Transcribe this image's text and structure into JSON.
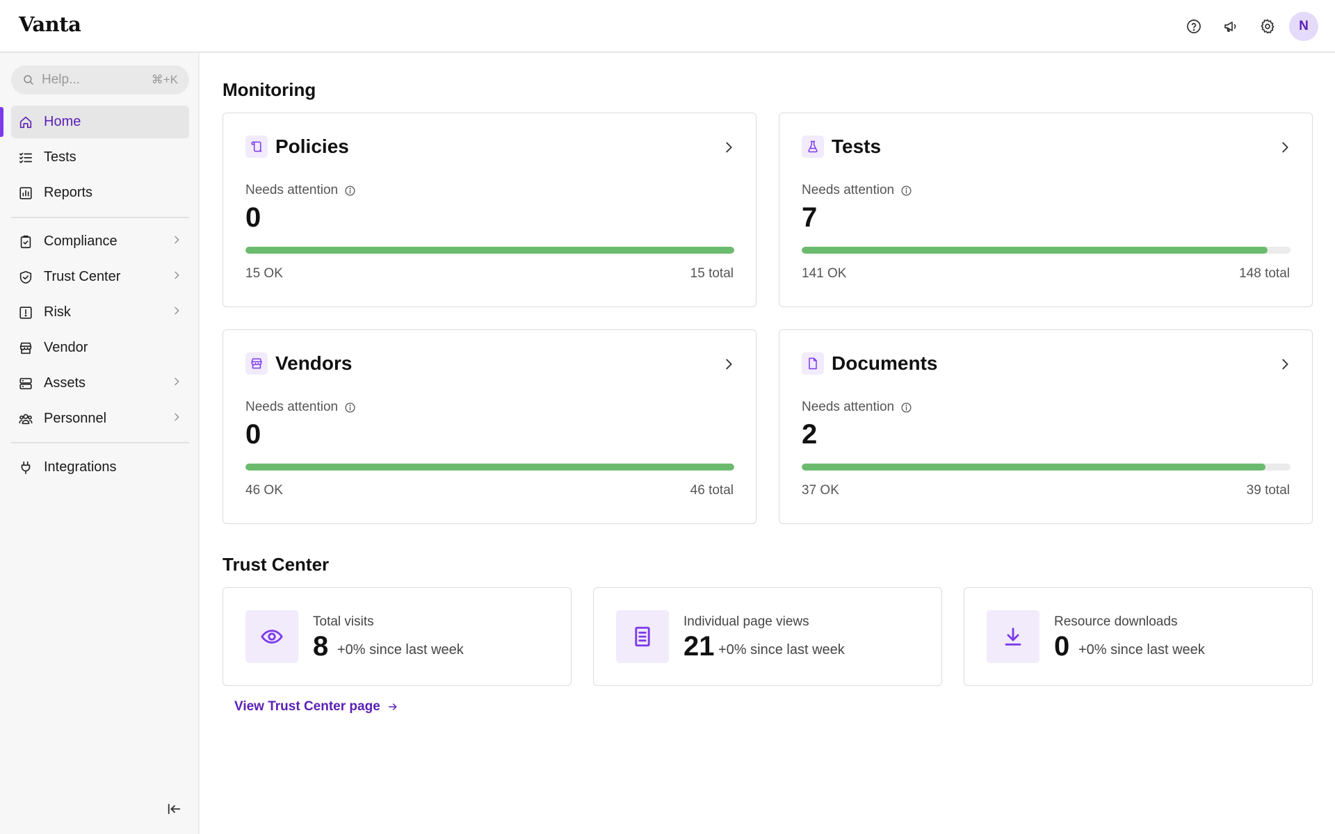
{
  "app": {
    "logo": "Vanta",
    "avatar_initial": "N"
  },
  "topbar": {
    "icons": [
      "help-circle-icon",
      "megaphone-icon",
      "gear-icon"
    ]
  },
  "sidebar": {
    "search": {
      "placeholder": "Help...",
      "shortcut": "⌘+K"
    },
    "items": [
      {
        "label": "Home",
        "icon": "home-icon",
        "active": true,
        "has_chevron": false
      },
      {
        "label": "Tests",
        "icon": "checklist-icon",
        "active": false,
        "has_chevron": false
      },
      {
        "label": "Reports",
        "icon": "bar-chart-icon",
        "active": false,
        "has_chevron": false
      },
      {
        "label": "Compliance",
        "icon": "clipboard-check-icon",
        "active": false,
        "has_chevron": true
      },
      {
        "label": "Trust Center",
        "icon": "shield-check-icon",
        "active": false,
        "has_chevron": true
      },
      {
        "label": "Risk",
        "icon": "alert-square-icon",
        "active": false,
        "has_chevron": true
      },
      {
        "label": "Vendor",
        "icon": "store-icon",
        "active": false,
        "has_chevron": false
      },
      {
        "label": "Assets",
        "icon": "server-icon",
        "active": false,
        "has_chevron": true
      },
      {
        "label": "Personnel",
        "icon": "users-icon",
        "active": false,
        "has_chevron": true
      },
      {
        "label": "Integrations",
        "icon": "plug-icon",
        "active": false,
        "has_chevron": false
      }
    ]
  },
  "monitoring": {
    "title": "Monitoring",
    "cards": [
      {
        "title": "Policies",
        "icon": "scroll-icon",
        "attention_label": "Needs attention",
        "attention_count": "0",
        "ok_label": "15 OK",
        "total_label": "15 total",
        "ok": 15,
        "total": 15
      },
      {
        "title": "Tests",
        "icon": "flask-icon",
        "attention_label": "Needs attention",
        "attention_count": "7",
        "ok_label": "141 OK",
        "total_label": "148 total",
        "ok": 141,
        "total": 148
      },
      {
        "title": "Vendors",
        "icon": "store-icon",
        "attention_label": "Needs attention",
        "attention_count": "0",
        "ok_label": "46 OK",
        "total_label": "46 total",
        "ok": 46,
        "total": 46
      },
      {
        "title": "Documents",
        "icon": "document-icon",
        "attention_label": "Needs attention",
        "attention_count": "2",
        "ok_label": "37 OK",
        "total_label": "39 total",
        "ok": 37,
        "total": 39
      }
    ]
  },
  "trust_center": {
    "title": "Trust Center",
    "cards": [
      {
        "label": "Total visits",
        "value": "8",
        "delta": "+0% since last week",
        "icon": "eye-icon"
      },
      {
        "label": "Individual page views",
        "value": "21",
        "delta": "+0% since last week",
        "icon": "page-icon"
      },
      {
        "label": "Resource downloads",
        "value": "0",
        "delta": "+0% since last week",
        "icon": "download-icon"
      }
    ],
    "link_label": "View Trust Center page"
  },
  "colors": {
    "accent": "#7c3aed",
    "accent_dark": "#5b21b6",
    "progress": "#6bbb6e",
    "icon_bg": "#f1ebfc"
  }
}
